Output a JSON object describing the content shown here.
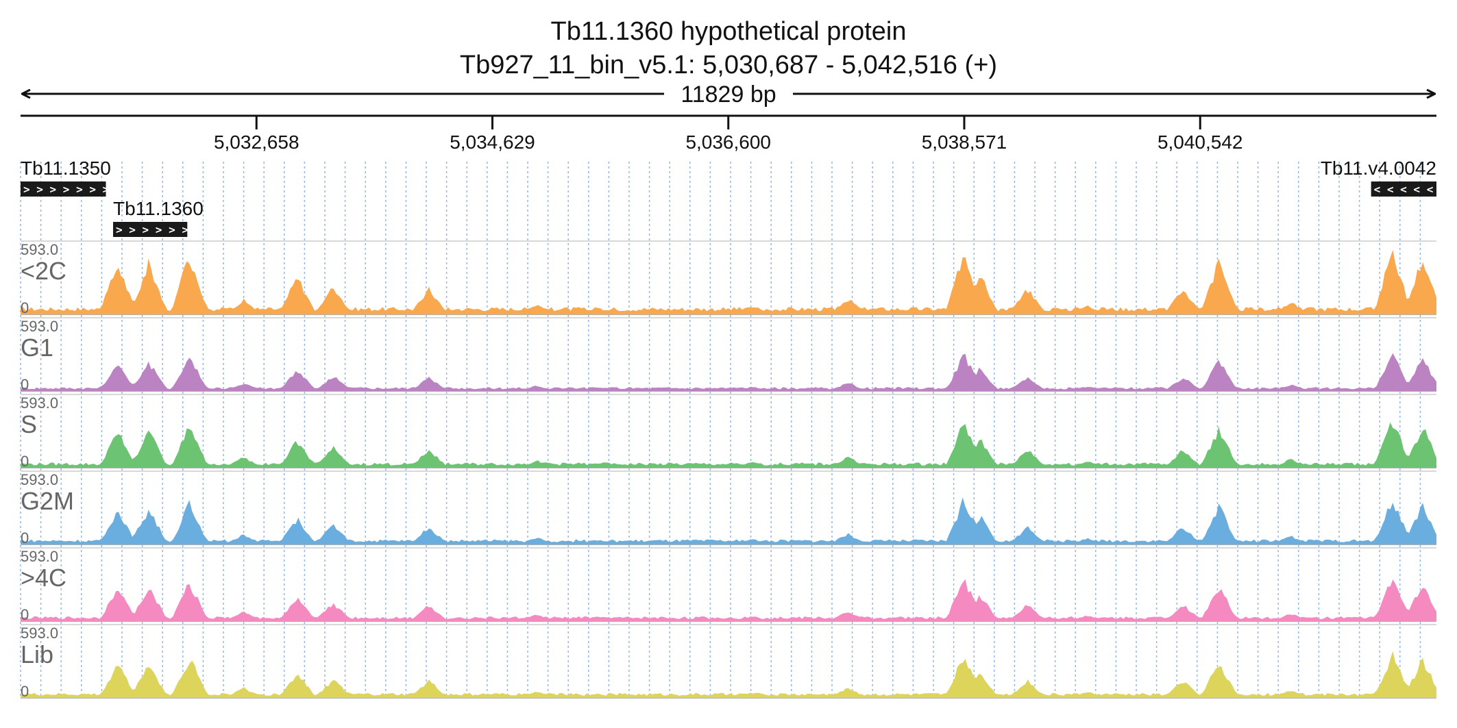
{
  "chart_data": {
    "type": "area",
    "title": "Tb11.1360  hypothetical protein",
    "subtitle": "Tb927_11_bin_v5.1: 5,030,687 - 5,042,516 (+)",
    "span_label": "11829 bp",
    "region": {
      "start": 5030687,
      "end": 5042516
    },
    "x_ticks": [
      {
        "pos": 5032658,
        "label": "5,032,658"
      },
      {
        "pos": 5034629,
        "label": "5,034,629"
      },
      {
        "pos": 5036600,
        "label": "5,036,600"
      },
      {
        "pos": 5038571,
        "label": "5,038,571"
      },
      {
        "pos": 5040542,
        "label": "5,040,542"
      }
    ],
    "genes": [
      {
        "name": "Tb11.1350",
        "start": 5030687,
        "end": 5031400,
        "strand": "+",
        "arrows": "> > > > > > >",
        "row": 0
      },
      {
        "name": "Tb11.1360",
        "start": 5031460,
        "end": 5032080,
        "strand": "+",
        "arrows": "> > > > > >",
        "row": 1
      },
      {
        "name": "Tb11.v4.0042",
        "start": 5041970,
        "end": 5042516,
        "strand": "-",
        "arrows": "< < < < <",
        "row": 0
      }
    ],
    "ylim": [
      0,
      593.0
    ],
    "y_max_label": "593.0",
    "y_min_label": "0",
    "series": [
      {
        "name": "<2C",
        "color": "#F9A84E",
        "scale": 1.0
      },
      {
        "name": "G1",
        "color": "#BB83C2",
        "scale": 0.55
      },
      {
        "name": "S",
        "color": "#6CC472",
        "scale": 0.72
      },
      {
        "name": "G2M",
        "color": "#6AAEE0",
        "scale": 0.7
      },
      {
        "name": ">4C",
        "color": "#F58AC0",
        "scale": 0.65
      },
      {
        "name": "Lib",
        "color": "#DDD45C",
        "scale": 0.68
      }
    ],
    "profile_peaks": [
      {
        "pos": 5031500,
        "value": 460
      },
      {
        "pos": 5031760,
        "value": 470
      },
      {
        "pos": 5032100,
        "value": 540
      },
      {
        "pos": 5032550,
        "value": 130
      },
      {
        "pos": 5033000,
        "value": 340
      },
      {
        "pos": 5033300,
        "value": 250
      },
      {
        "pos": 5034100,
        "value": 230
      },
      {
        "pos": 5035000,
        "value": 90
      },
      {
        "pos": 5035500,
        "value": 60
      },
      {
        "pos": 5036800,
        "value": 70
      },
      {
        "pos": 5037600,
        "value": 140
      },
      {
        "pos": 5038571,
        "value": 593
      },
      {
        "pos": 5038700,
        "value": 370
      },
      {
        "pos": 5039100,
        "value": 230
      },
      {
        "pos": 5039600,
        "value": 80
      },
      {
        "pos": 5040400,
        "value": 230
      },
      {
        "pos": 5040700,
        "value": 490
      },
      {
        "pos": 5041300,
        "value": 110
      },
      {
        "pos": 5042150,
        "value": 593
      },
      {
        "pos": 5042400,
        "value": 520
      }
    ],
    "grid": true,
    "legend": "none"
  }
}
